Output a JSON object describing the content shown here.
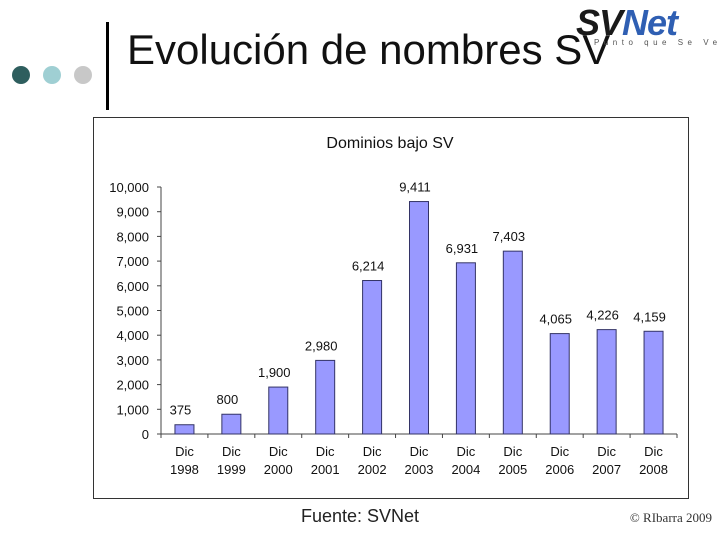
{
  "slide": {
    "title": "Evolución de nombres SV",
    "source": "Fuente: SVNet",
    "copyright": "© RIbarra 2009"
  },
  "logo": {
    "part1": "SV",
    "part2": "Net",
    "tagline": "Punto que Se Ve"
  },
  "colors": {
    "bar_fill": "#9999ff",
    "bar_stroke": "#333366",
    "dot1": "#2e5e5e",
    "dot2": "#9fcfd3",
    "dot3": "#c8c8c8",
    "logo_dark": "#1a1a1a",
    "logo_blue": "#2f5fb3"
  },
  "chart_data": {
    "type": "bar",
    "title": "Dominios bajo SV",
    "categories": [
      [
        "Dic",
        "1998"
      ],
      [
        "Dic",
        "1999"
      ],
      [
        "Dic",
        "2000"
      ],
      [
        "Dic",
        "2001"
      ],
      [
        "Dic",
        "2002"
      ],
      [
        "Dic",
        "2003"
      ],
      [
        "Dic",
        "2004"
      ],
      [
        "Dic",
        "2005"
      ],
      [
        "Dic",
        "2006"
      ],
      [
        "Dic",
        "2007"
      ],
      [
        "Dic",
        "2008"
      ]
    ],
    "values": [
      375,
      800,
      1900,
      2980,
      6214,
      9411,
      6931,
      7403,
      4065,
      4226,
      4159
    ],
    "value_labels": [
      "375",
      "800",
      "1,900",
      "2,980",
      "6,214",
      "9,411",
      "6,931",
      "7,403",
      "4,065",
      "4,226",
      "4,159"
    ],
    "yticks": [
      0,
      1000,
      2000,
      3000,
      4000,
      5000,
      6000,
      7000,
      8000,
      9000,
      10000
    ],
    "ytick_labels": [
      "0",
      "1,000",
      "2,000",
      "3,000",
      "4,000",
      "5,000",
      "6,000",
      "7,000",
      "8,000",
      "9,000",
      "10,000"
    ],
    "ylim": [
      0,
      10000
    ],
    "xlabel": "",
    "ylabel": "",
    "grid": false,
    "legend": "none"
  }
}
